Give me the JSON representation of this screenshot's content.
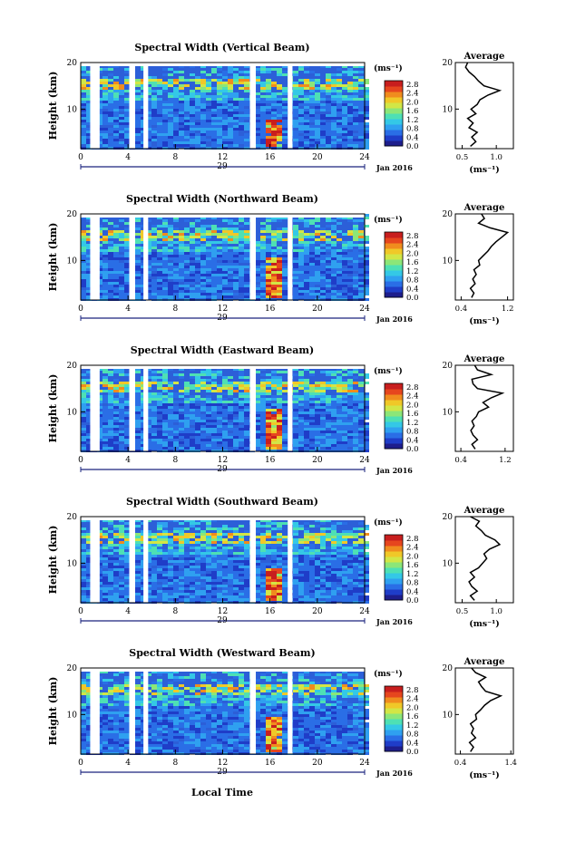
{
  "figure": {
    "xlabel": "Local Time",
    "date_label": "Jan 2016",
    "day_label": "29",
    "colorbar_unit": "(ms⁻¹)",
    "colorbar_ticks": [
      "0.0",
      "0.4",
      "0.8",
      "1.2",
      "1.6",
      "2.0",
      "2.4",
      "2.8"
    ],
    "colorscale": [
      "#1e1e8c",
      "#1f3dc8",
      "#2a6ee6",
      "#2fa0f0",
      "#34c8e6",
      "#4ee0b4",
      "#8ce678",
      "#d2e646",
      "#f0c828",
      "#f08c1e",
      "#e6461e",
      "#c81e1e"
    ]
  },
  "chart_data": [
    {
      "type": "heatmap",
      "title": "Spectral Width (Vertical Beam)",
      "ylabel": "Height (km)",
      "x_ticks": [
        0,
        4,
        8,
        12,
        16,
        20,
        24
      ],
      "y_ticks": [
        10,
        20
      ],
      "xlim": [
        0,
        24
      ],
      "ylim": [
        1.5,
        20
      ],
      "zlim": [
        0.0,
        2.8
      ],
      "data_gaps_hours": [
        [
          0.8,
          1.6
        ],
        [
          4.1,
          4.6
        ],
        [
          5.3,
          5.7
        ],
        [
          14.3,
          14.8
        ],
        [
          17.5,
          17.9
        ]
      ],
      "enhanced_region": {
        "x": [
          15.2,
          17.0
        ],
        "y": [
          2,
          8
        ],
        "value": 2.8
      },
      "average": {
        "title": "Average",
        "xlabel": "(ms⁻¹)",
        "x_ticks": [
          "0.5",
          "1.0"
        ],
        "xlim": [
          0.4,
          1.25
        ],
        "y_ticks": [
          10,
          20
        ],
        "profile": [
          [
            0.62,
            2
          ],
          [
            0.7,
            3
          ],
          [
            0.64,
            4
          ],
          [
            0.72,
            5
          ],
          [
            0.6,
            6
          ],
          [
            0.66,
            7
          ],
          [
            0.58,
            8
          ],
          [
            0.7,
            9
          ],
          [
            0.63,
            10
          ],
          [
            0.72,
            11
          ],
          [
            0.76,
            12
          ],
          [
            0.88,
            13
          ],
          [
            1.05,
            14
          ],
          [
            0.82,
            15
          ],
          [
            0.74,
            16
          ],
          [
            0.68,
            17
          ],
          [
            0.6,
            18
          ],
          [
            0.55,
            19
          ],
          [
            0.58,
            20
          ]
        ]
      }
    },
    {
      "type": "heatmap",
      "title": "Spectral Width (Northward Beam)",
      "ylabel": "Height (km)",
      "x_ticks": [
        0,
        4,
        8,
        12,
        16,
        20,
        24
      ],
      "y_ticks": [
        10,
        20
      ],
      "xlim": [
        0,
        24
      ],
      "ylim": [
        1.5,
        20
      ],
      "zlim": [
        0.0,
        2.8
      ],
      "data_gaps_hours": [
        [
          0.8,
          1.6
        ],
        [
          4.1,
          4.6
        ],
        [
          5.3,
          5.7
        ],
        [
          14.3,
          14.8
        ],
        [
          17.5,
          17.9
        ]
      ],
      "enhanced_region": {
        "x": [
          15.2,
          17.0
        ],
        "y": [
          2,
          11
        ],
        "value": 2.8
      },
      "average": {
        "title": "Average",
        "xlabel": "(ms⁻¹)",
        "x_ticks": [
          "0.4",
          "1.2"
        ],
        "xlim": [
          0.3,
          1.3
        ],
        "y_ticks": [
          10,
          20
        ],
        "profile": [
          [
            0.58,
            2
          ],
          [
            0.62,
            3
          ],
          [
            0.56,
            4
          ],
          [
            0.64,
            5
          ],
          [
            0.6,
            6
          ],
          [
            0.66,
            7
          ],
          [
            0.62,
            8
          ],
          [
            0.72,
            9
          ],
          [
            0.7,
            10
          ],
          [
            0.78,
            11
          ],
          [
            0.86,
            12
          ],
          [
            0.92,
            13
          ],
          [
            1.0,
            14
          ],
          [
            1.1,
            15
          ],
          [
            1.2,
            16
          ],
          [
            0.9,
            17
          ],
          [
            0.7,
            18
          ],
          [
            0.8,
            19
          ],
          [
            0.75,
            20
          ]
        ]
      }
    },
    {
      "type": "heatmap",
      "title": "Spectral Width (Eastward Beam)",
      "ylabel": "Height (km)",
      "x_ticks": [
        0,
        4,
        8,
        12,
        16,
        20,
        24
      ],
      "y_ticks": [
        10,
        20
      ],
      "xlim": [
        0,
        24
      ],
      "ylim": [
        1.5,
        20
      ],
      "zlim": [
        0.0,
        2.8
      ],
      "data_gaps_hours": [
        [
          0.8,
          1.6
        ],
        [
          4.1,
          4.6
        ],
        [
          5.3,
          5.7
        ],
        [
          14.3,
          14.8
        ],
        [
          17.5,
          17.9
        ]
      ],
      "enhanced_region": {
        "x": [
          15.2,
          17.0
        ],
        "y": [
          2,
          11
        ],
        "value": 2.8
      },
      "average": {
        "title": "Average",
        "xlabel": "",
        "x_ticks": [
          "0.4",
          "1.2"
        ],
        "xlim": [
          0.3,
          1.35
        ],
        "y_ticks": [
          10,
          20
        ],
        "profile": [
          [
            0.66,
            2
          ],
          [
            0.6,
            3
          ],
          [
            0.7,
            4
          ],
          [
            0.62,
            5
          ],
          [
            0.58,
            6
          ],
          [
            0.64,
            7
          ],
          [
            0.6,
            8
          ],
          [
            0.68,
            9
          ],
          [
            0.72,
            10
          ],
          [
            0.9,
            11
          ],
          [
            0.8,
            12
          ],
          [
            0.95,
            13
          ],
          [
            1.15,
            14
          ],
          [
            0.7,
            15
          ],
          [
            0.62,
            16
          ],
          [
            0.6,
            17
          ],
          [
            0.95,
            18
          ],
          [
            0.7,
            19
          ],
          [
            0.65,
            20
          ]
        ]
      }
    },
    {
      "type": "heatmap",
      "title": "Spectral Width (Southward Beam)",
      "ylabel": "Height (km)",
      "x_ticks": [
        0,
        4,
        8,
        12,
        16,
        20,
        24
      ],
      "y_ticks": [
        10,
        20
      ],
      "xlim": [
        0,
        24
      ],
      "ylim": [
        1.5,
        20
      ],
      "zlim": [
        0.0,
        2.8
      ],
      "data_gaps_hours": [
        [
          0.8,
          1.6
        ],
        [
          4.1,
          4.6
        ],
        [
          5.3,
          5.7
        ],
        [
          14.3,
          14.8
        ],
        [
          17.5,
          17.9
        ]
      ],
      "enhanced_region": {
        "x": [
          15.2,
          17.0
        ],
        "y": [
          2,
          9
        ],
        "value": 2.8
      },
      "average": {
        "title": "Average",
        "xlabel": "(ms⁻¹)",
        "x_ticks": [
          "0.5",
          "1.0"
        ],
        "xlim": [
          0.4,
          1.25
        ],
        "y_ticks": [
          10,
          20
        ],
        "profile": [
          [
            0.68,
            2
          ],
          [
            0.62,
            3
          ],
          [
            0.72,
            4
          ],
          [
            0.64,
            5
          ],
          [
            0.6,
            6
          ],
          [
            0.68,
            7
          ],
          [
            0.62,
            8
          ],
          [
            0.74,
            9
          ],
          [
            0.8,
            10
          ],
          [
            0.86,
            11
          ],
          [
            0.82,
            12
          ],
          [
            0.9,
            13
          ],
          [
            1.05,
            14
          ],
          [
            0.98,
            15
          ],
          [
            0.84,
            16
          ],
          [
            0.78,
            17
          ],
          [
            0.7,
            18
          ],
          [
            0.75,
            19
          ],
          [
            0.62,
            20
          ]
        ]
      }
    },
    {
      "type": "heatmap",
      "title": "Spectral Width (Westward Beam)",
      "ylabel": "Height (km)",
      "x_ticks": [
        0,
        4,
        8,
        12,
        16,
        20,
        24
      ],
      "y_ticks": [
        10,
        20
      ],
      "xlim": [
        0,
        24
      ],
      "ylim": [
        1.5,
        20
      ],
      "zlim": [
        0.0,
        2.8
      ],
      "data_gaps_hours": [
        [
          0.8,
          1.6
        ],
        [
          4.1,
          4.6
        ],
        [
          5.3,
          5.7
        ],
        [
          14.3,
          14.8
        ],
        [
          17.5,
          17.9
        ]
      ],
      "enhanced_region": {
        "x": [
          15.2,
          17.0
        ],
        "y": [
          2,
          10
        ],
        "value": 2.8
      },
      "average": {
        "title": "Average",
        "xlabel": "(ms⁻¹)",
        "x_ticks": [
          "0.4",
          "1.4"
        ],
        "xlim": [
          0.3,
          1.45
        ],
        "y_ticks": [
          10,
          20
        ],
        "profile": [
          [
            0.6,
            2
          ],
          [
            0.66,
            3
          ],
          [
            0.58,
            4
          ],
          [
            0.7,
            5
          ],
          [
            0.62,
            6
          ],
          [
            0.66,
            7
          ],
          [
            0.6,
            8
          ],
          [
            0.72,
            9
          ],
          [
            0.7,
            10
          ],
          [
            0.8,
            11
          ],
          [
            0.88,
            12
          ],
          [
            1.0,
            13
          ],
          [
            1.2,
            14
          ],
          [
            0.9,
            15
          ],
          [
            0.82,
            16
          ],
          [
            0.76,
            17
          ],
          [
            0.9,
            18
          ],
          [
            0.7,
            19
          ],
          [
            0.62,
            20
          ]
        ]
      }
    }
  ]
}
